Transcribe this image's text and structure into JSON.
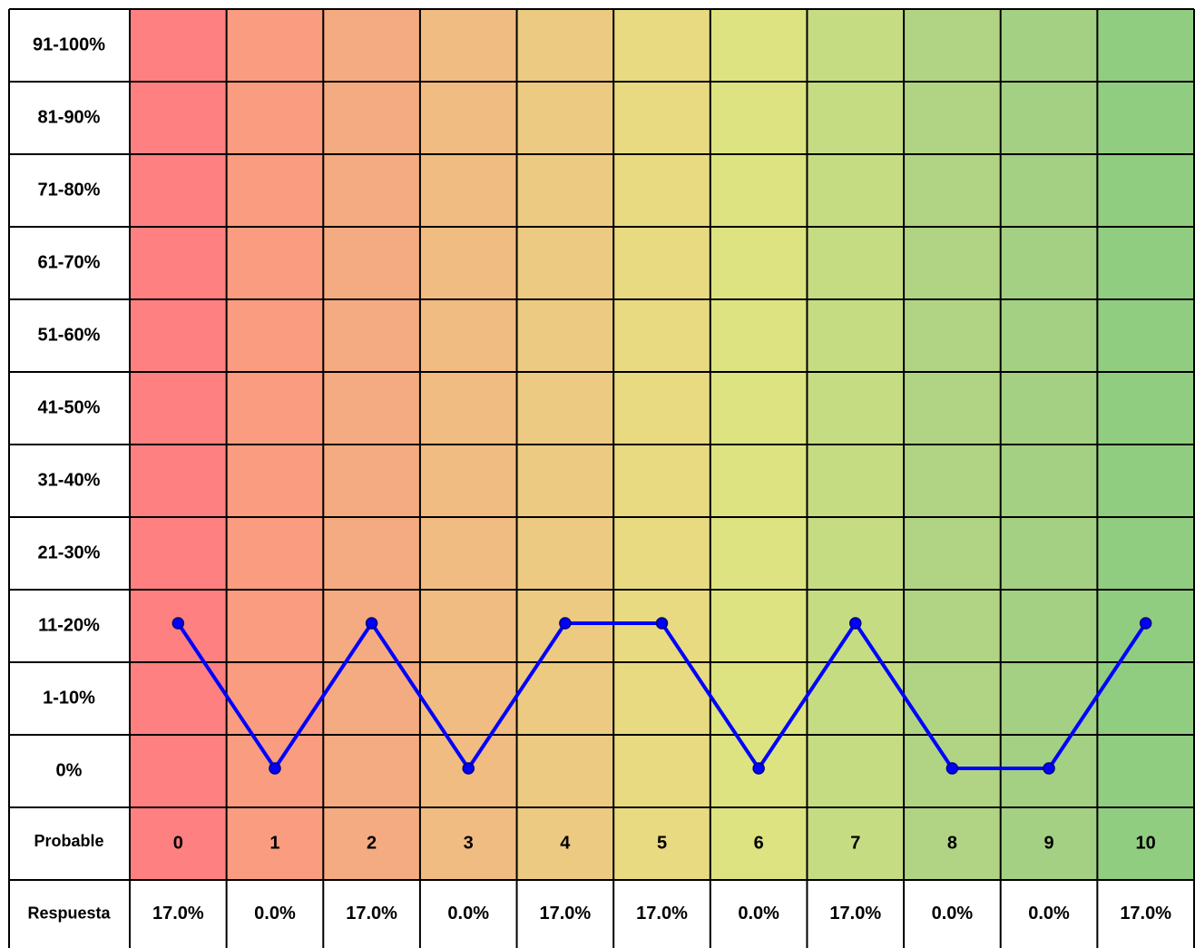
{
  "chart_data": {
    "type": "line",
    "y_bands": [
      "91-100%",
      "81-90%",
      "71-80%",
      "61-70%",
      "51-60%",
      "41-50%",
      "31-40%",
      "21-30%",
      "11-20%",
      "1-10%",
      "0%"
    ],
    "row_labels": [
      "Probable",
      "Respuesta"
    ],
    "categories": [
      "0",
      "1",
      "2",
      "3",
      "4",
      "5",
      "6",
      "7",
      "8",
      "9",
      "10"
    ],
    "values": [
      17,
      0,
      17,
      0,
      17,
      17,
      0,
      17,
      0,
      0,
      17
    ],
    "value_labels": [
      "17.0%",
      "0.0%",
      "17.0%",
      "0.0%",
      "17.0%",
      "17.0%",
      "0.0%",
      "17.0%",
      "0.0%",
      "0.0%",
      "17.0%"
    ],
    "column_colors": [
      "#ff8080",
      "#f99c80",
      "#f4ab81",
      "#f0bc82",
      "#ecca81",
      "#e8da81",
      "#dde380",
      "#c6dc83",
      "#b1d484",
      "#a3d083",
      "#91cd81"
    ],
    "color": "#0000ff"
  }
}
